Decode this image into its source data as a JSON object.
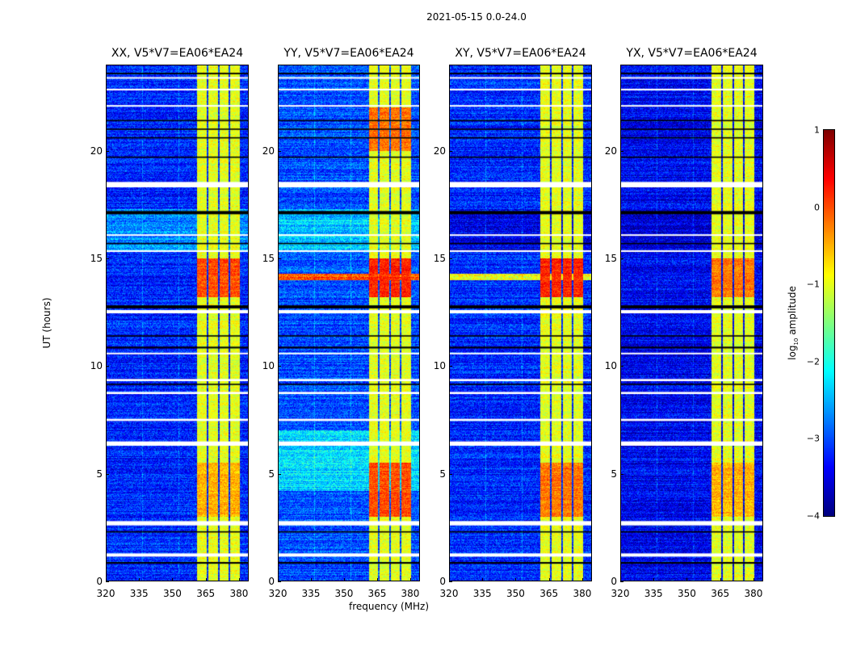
{
  "chart_data": {
    "type": "heatmap",
    "title": "2021-05-15 0.0-24.0",
    "xlabel": "frequency (MHz)",
    "ylabel": "UT (hours)",
    "colorbar_label": {
      "main": "log",
      "sub": "10",
      "rest": " amplitude"
    },
    "xlim": [
      320,
      384.4
    ],
    "ylim": [
      0,
      24
    ],
    "clim": [
      -4,
      1
    ],
    "colormap": "jet",
    "x_ticks": [
      "320",
      "335",
      "350",
      "365",
      "380"
    ],
    "x_tick_values": [
      320,
      335,
      350,
      365,
      380
    ],
    "y_ticks": [
      "0",
      "5",
      "10",
      "15",
      "20"
    ],
    "y_tick_values": [
      0,
      5,
      10,
      15,
      20
    ],
    "cbar_ticks": [
      "1",
      "0",
      "−1",
      "−2",
      "−3",
      "−4"
    ],
    "cbar_tick_values": [
      1,
      0,
      -1,
      -2,
      -3,
      -4
    ],
    "channel_band": {
      "range": [
        360.7,
        380.4
      ],
      "gaps": [
        365.8,
        370.9,
        375.6
      ],
      "level": -1.0
    },
    "flagged_rows_white": [
      [
        1.15,
        1.3
      ],
      [
        2.6,
        2.8
      ],
      [
        6.3,
        6.5
      ],
      [
        7.45,
        7.55
      ],
      [
        8.7,
        8.8
      ],
      [
        9.3,
        9.4
      ],
      [
        10.55,
        10.62
      ],
      [
        12.45,
        12.6
      ],
      [
        15.3,
        15.38
      ],
      [
        16.05,
        16.12
      ],
      [
        18.3,
        18.55
      ],
      [
        22.05,
        22.12
      ],
      [
        22.8,
        22.88
      ],
      [
        23.35,
        23.42
      ]
    ],
    "flagged_rows_black": [
      [
        0.82,
        0.9
      ],
      [
        2.27,
        2.33
      ],
      [
        9.12,
        9.18
      ],
      [
        10.82,
        10.9
      ],
      [
        11.37,
        11.43
      ],
      [
        12.68,
        12.82
      ],
      [
        15.66,
        15.72
      ],
      [
        17.05,
        17.2
      ],
      [
        19.67,
        19.73
      ],
      [
        20.57,
        20.63
      ],
      [
        20.97,
        21.03
      ],
      [
        21.37,
        21.43
      ],
      [
        23.55,
        23.62
      ]
    ],
    "panels": [
      {
        "title": "XX, V5*V7=EA06*EA24",
        "background": -3.2,
        "events": [
          {
            "hours": [
              13.2,
              15.0
            ],
            "band_level": 0.0
          },
          {
            "hours": [
              3.0,
              5.5
            ],
            "band_level": -0.5
          },
          {
            "hours": [
              15.3,
              17.3
            ],
            "background": -2.7
          }
        ]
      },
      {
        "title": "YY, V5*V7=EA06*EA24",
        "background": -3.0,
        "events": [
          {
            "hours": [
              13.2,
              15.0
            ],
            "band_level": 0.2
          },
          {
            "hours": [
              14.0,
              14.3
            ],
            "background": 0.0
          },
          {
            "hours": [
              3.0,
              5.5
            ],
            "band_level": 0.0
          },
          {
            "hours": [
              4.2,
              7.0
            ],
            "background": -2.3
          },
          {
            "hours": [
              15.3,
              17.3
            ],
            "background": -2.4
          },
          {
            "hours": [
              20.0,
              22.0
            ],
            "band_level": -0.2
          }
        ]
      },
      {
        "title": "XY, V5*V7=EA06*EA24",
        "background": -3.2,
        "events": [
          {
            "hours": [
              13.2,
              15.0
            ],
            "band_level": 0.2
          },
          {
            "hours": [
              14.0,
              14.3
            ],
            "background": -0.9
          },
          {
            "hours": [
              3.0,
              5.5
            ],
            "band_level": -0.2
          },
          {
            "hours": [
              15.3,
              17.3
            ],
            "background": -3.5
          }
        ]
      },
      {
        "title": "YX, V5*V7=EA06*EA24",
        "background": -3.4,
        "events": [
          {
            "hours": [
              13.2,
              15.0
            ],
            "band_level": -0.2
          },
          {
            "hours": [
              3.0,
              5.5
            ],
            "band_level": -0.5
          },
          {
            "hours": [
              15.3,
              17.3
            ],
            "background": -3.6
          }
        ]
      }
    ]
  }
}
